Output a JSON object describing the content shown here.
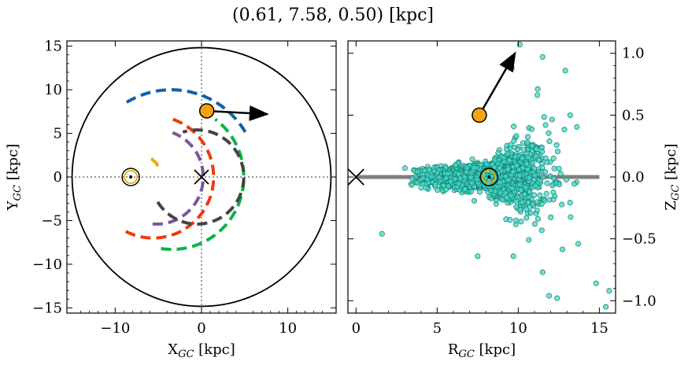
{
  "figure": {
    "title": "(0.61, 7.58, 0.50) [kpc]"
  },
  "chart_data": [
    {
      "type": "line",
      "panel": "left",
      "title": "",
      "xlabel": "X_GC [kpc]",
      "ylabel": "Y_GC [kpc]",
      "xlim": [
        -15.6,
        15.6
      ],
      "ylim": [
        -15.6,
        15.6
      ],
      "xticks": [
        -10,
        0,
        10
      ],
      "yticks": [
        -15,
        -10,
        -5,
        0,
        5,
        10,
        15
      ],
      "x_tick_labels": [
        "−10",
        "0",
        "10"
      ],
      "y_tick_labels": [
        "−15",
        "−10",
        "−5",
        "0",
        "5",
        "10",
        "15"
      ],
      "circle_radius": 15,
      "center_marker": {
        "x": 0,
        "y": 0,
        "symbol": "x"
      },
      "sun": {
        "x": -8.2,
        "y": 0
      },
      "object": {
        "x": 0.61,
        "y": 7.58,
        "color": "#f5a20f"
      },
      "velocity_arrow": {
        "from": [
          0.61,
          7.58
        ],
        "to": [
          7.6,
          7.2
        ]
      },
      "gridlines": {
        "x": 0,
        "y": 0,
        "style": "dotted"
      },
      "series": [
        {
          "color": "#1162a6",
          "style": "dashed",
          "radius": 10.0,
          "angle_start": 31,
          "angle_end": 122,
          "center": [
            -3.5,
            0
          ]
        },
        {
          "color": "#0ab346",
          "style": "dashed",
          "radius": 8.3,
          "angle_start": -99,
          "angle_end": 53,
          "center": [
            -3.4,
            0
          ]
        },
        {
          "color": "#f5a20f",
          "style": "dashed",
          "radius": 2.5,
          "angle_start": 30,
          "angle_end": 70,
          "center": [
            -7.2,
            0
          ]
        },
        {
          "color": "#ee3a0e",
          "style": "dashed",
          "radius": 7.0,
          "angle_start": -117,
          "angle_end": 74,
          "center": [
            -5.6,
            0
          ]
        },
        {
          "color": "#7b569a",
          "style": "dashed",
          "radius": 5.4,
          "angle_start": -95,
          "angle_end": 70,
          "center": [
            -5.2,
            0
          ]
        },
        {
          "color": "#444444",
          "style": "dashed",
          "radius": 5.4,
          "angle_start": -148,
          "angle_end": 108,
          "center": [
            -0.5,
            0
          ]
        }
      ]
    },
    {
      "type": "scatter",
      "panel": "right",
      "title": "",
      "xlabel": "R_GC [kpc]",
      "ylabel": "Z_GC [kpc]",
      "xlim": [
        -0.5,
        16
      ],
      "ylim": [
        -1.1,
        1.1
      ],
      "xticks": [
        0,
        5,
        10,
        15
      ],
      "yticks": [
        -1.0,
        -0.5,
        0.0,
        0.5,
        1.0
      ],
      "x_tick_labels": [
        "0",
        "5",
        "10",
        "15"
      ],
      "y_tick_labels": [
        "−1.0",
        "−0.5",
        "0.0",
        "0.5",
        "1.0"
      ],
      "yaxis_side": "right",
      "point_color": "#40d9c6",
      "point_edge": "#1a7a72",
      "disk_line": {
        "from": [
          0,
          0
        ],
        "to": [
          15,
          0
        ],
        "color": "#808080"
      },
      "center_marker": {
        "x": 0,
        "y": 0,
        "symbol": "x"
      },
      "sun": {
        "x": 8.2,
        "y": 0
      },
      "object": {
        "x": 7.6,
        "y": 0.5,
        "color": "#f5a20f"
      },
      "velocity_arrow": {
        "from": [
          7.6,
          0.5
        ],
        "to": [
          9.8,
          1.0
        ]
      },
      "outliers": [
        {
          "x": 10.1,
          "y": 1.07
        },
        {
          "x": 11.5,
          "y": 0.97
        },
        {
          "x": 9.6,
          "y": 0.88
        },
        {
          "x": 12.9,
          "y": 0.86
        },
        {
          "x": 11.2,
          "y": 0.71
        },
        {
          "x": 13.2,
          "y": 0.5
        },
        {
          "x": 1.6,
          "y": -0.46
        },
        {
          "x": 7.5,
          "y": -0.64
        },
        {
          "x": 9.7,
          "y": -0.64
        },
        {
          "x": 14.8,
          "y": -0.86
        },
        {
          "x": 11.9,
          "y": -0.96
        },
        {
          "x": 12.4,
          "y": -0.98
        },
        {
          "x": 15.6,
          "y": -0.92
        },
        {
          "x": 15.4,
          "y": -1.05
        },
        {
          "x": 13.7,
          "y": -0.54
        },
        {
          "x": 11.5,
          "y": -0.77
        }
      ]
    }
  ]
}
